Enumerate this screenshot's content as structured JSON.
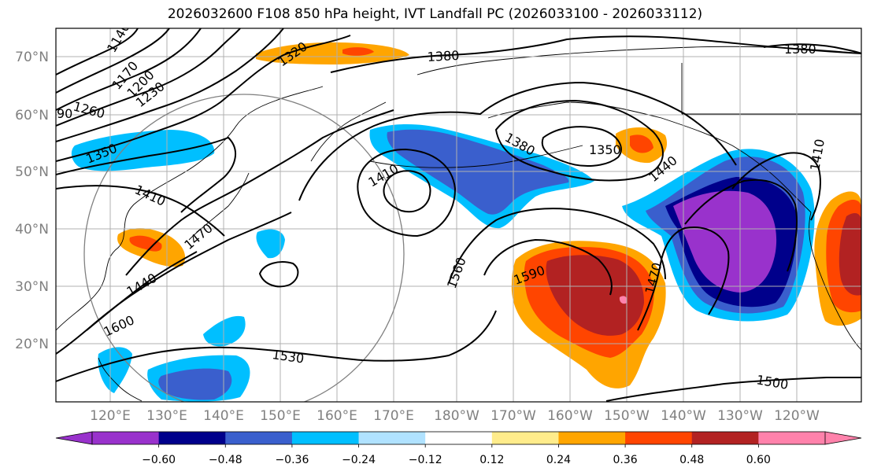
{
  "title": "2026032600 F108 850 hPa height, IVT Landfall PC (2026033100 - 2026033112)",
  "map": {
    "lat_labels": [
      "70°N",
      "60°N",
      "50°N",
      "40°N",
      "30°N",
      "20°N"
    ],
    "lon_labels": [
      "120°E",
      "130°E",
      "140°E",
      "150°E",
      "160°E",
      "170°E",
      "180°W",
      "170°W",
      "160°W",
      "150°W",
      "140°W",
      "130°W",
      "120°W"
    ],
    "contour_labels": [
      "1140",
      "1170",
      "1200",
      "1230",
      "1260",
      "90",
      "1320",
      "1380",
      "1380",
      "1350",
      "1410",
      "1410",
      "1380",
      "1350",
      "1440",
      "1470",
      "1440",
      "1600",
      "1560",
      "1590",
      "1470",
      "1530",
      "1500",
      "1410"
    ]
  },
  "colorbar": {
    "colors": [
      "#9932cc",
      "#00008b",
      "#3a5fcd",
      "#00bfff",
      "#b0e2ff",
      "#ffffff",
      "#ffec8b",
      "#ffa500",
      "#ff4500",
      "#b22222",
      "#ff82ab"
    ],
    "tick_labels": [
      "−0.60",
      "−0.48",
      "−0.36",
      "−0.24",
      "−0.12",
      "0.12",
      "0.24",
      "0.36",
      "0.48",
      "0.60"
    ]
  },
  "colors": {
    "grid": "#b0b0b0",
    "range_circle": "#808080",
    "contour": "#000000"
  }
}
